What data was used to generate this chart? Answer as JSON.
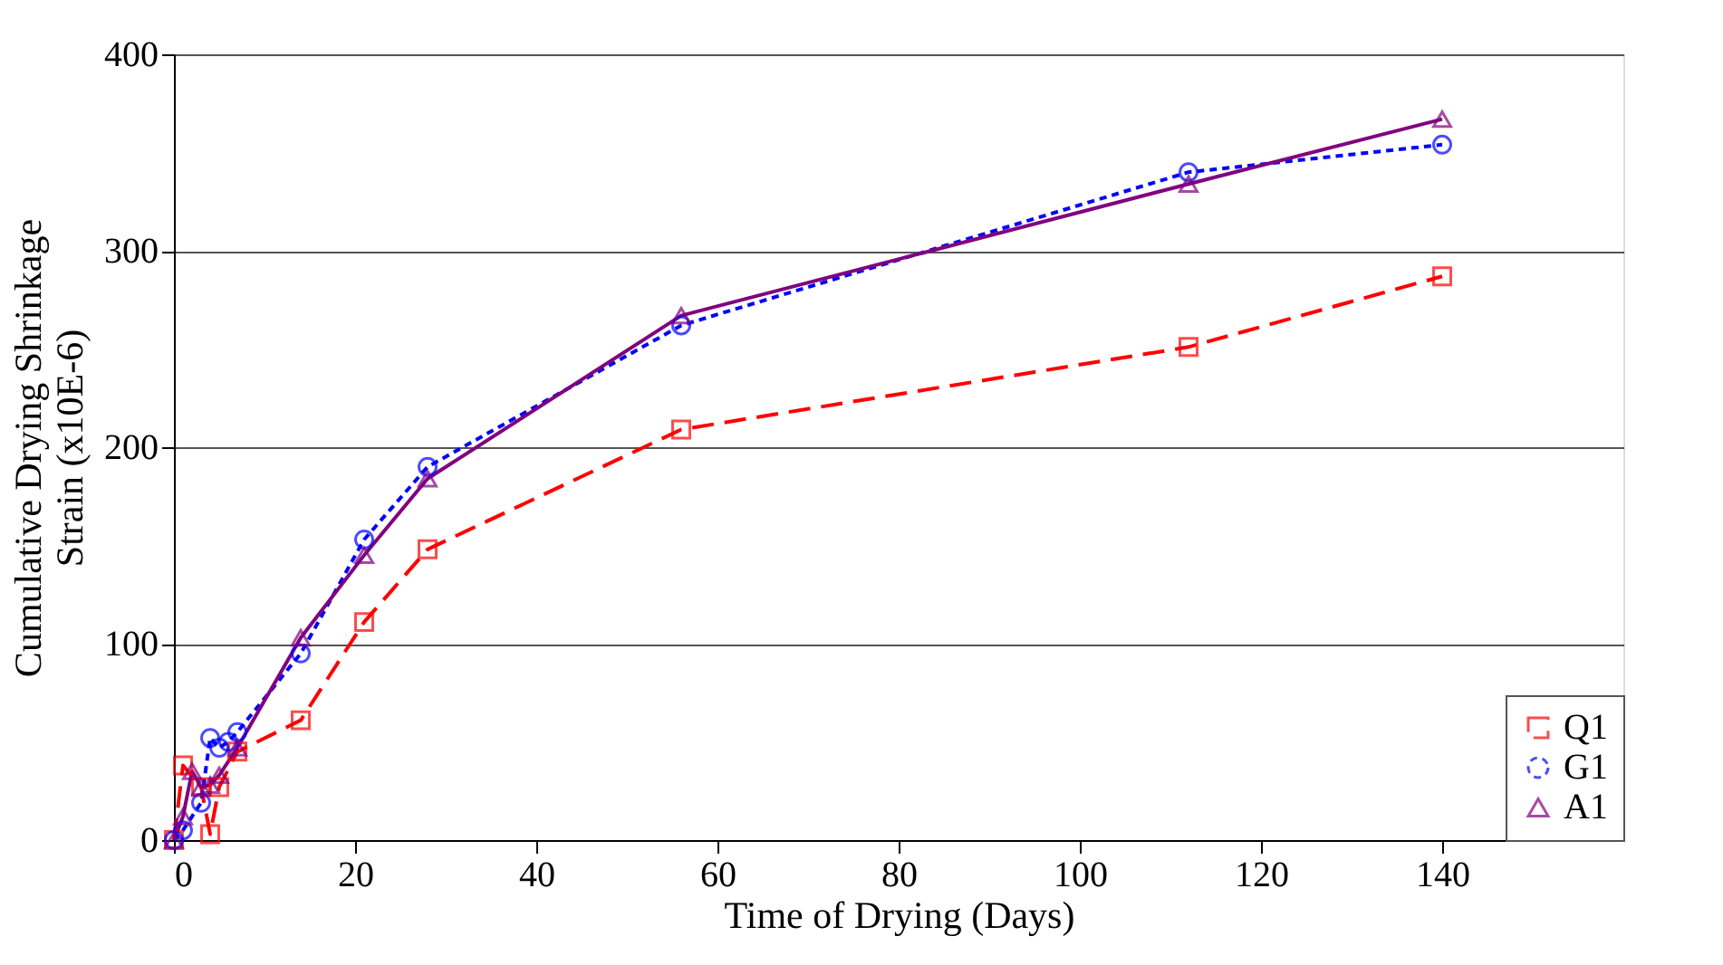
{
  "chart_data": {
    "type": "line",
    "xlabel": "Time of Drying (Days)",
    "ylabel": "Cumulative Drying Shrinkage\nStrain (x10E-6)",
    "xlim": [
      0,
      160
    ],
    "ylim": [
      0,
      400
    ],
    "xticks": [
      0,
      20,
      40,
      60,
      80,
      100,
      120,
      140
    ],
    "yticks": [
      0,
      100,
      200,
      300,
      400
    ],
    "grid": "y",
    "legend": "bottom right",
    "series": [
      {
        "name": "Q1",
        "color": "#ff0000",
        "marker": "square",
        "line_style": "dashed",
        "x": [
          0,
          1,
          3,
          4,
          5,
          7,
          14,
          21,
          28,
          56,
          112,
          140
        ],
        "values": [
          0,
          38,
          27,
          3,
          27,
          45,
          61,
          111,
          148,
          209,
          251,
          287
        ]
      },
      {
        "name": "G1",
        "color": "#0000ff",
        "marker": "circle",
        "line_style": "dotted",
        "x": [
          0,
          1,
          3,
          4,
          5,
          6,
          7,
          14,
          21,
          28,
          56,
          112,
          140
        ],
        "values": [
          0,
          5,
          19,
          52,
          47,
          50,
          55,
          95,
          153,
          190,
          262,
          340,
          354
        ]
      },
      {
        "name": "A1",
        "color": "#800080",
        "marker": "triangle",
        "line_style": "solid",
        "x": [
          0,
          1,
          2,
          3,
          4,
          5,
          7,
          14,
          21,
          28,
          56,
          112,
          140
        ],
        "values": [
          0,
          12,
          35,
          27,
          28,
          33,
          47,
          103,
          145,
          184,
          267,
          334,
          367
        ]
      }
    ]
  }
}
